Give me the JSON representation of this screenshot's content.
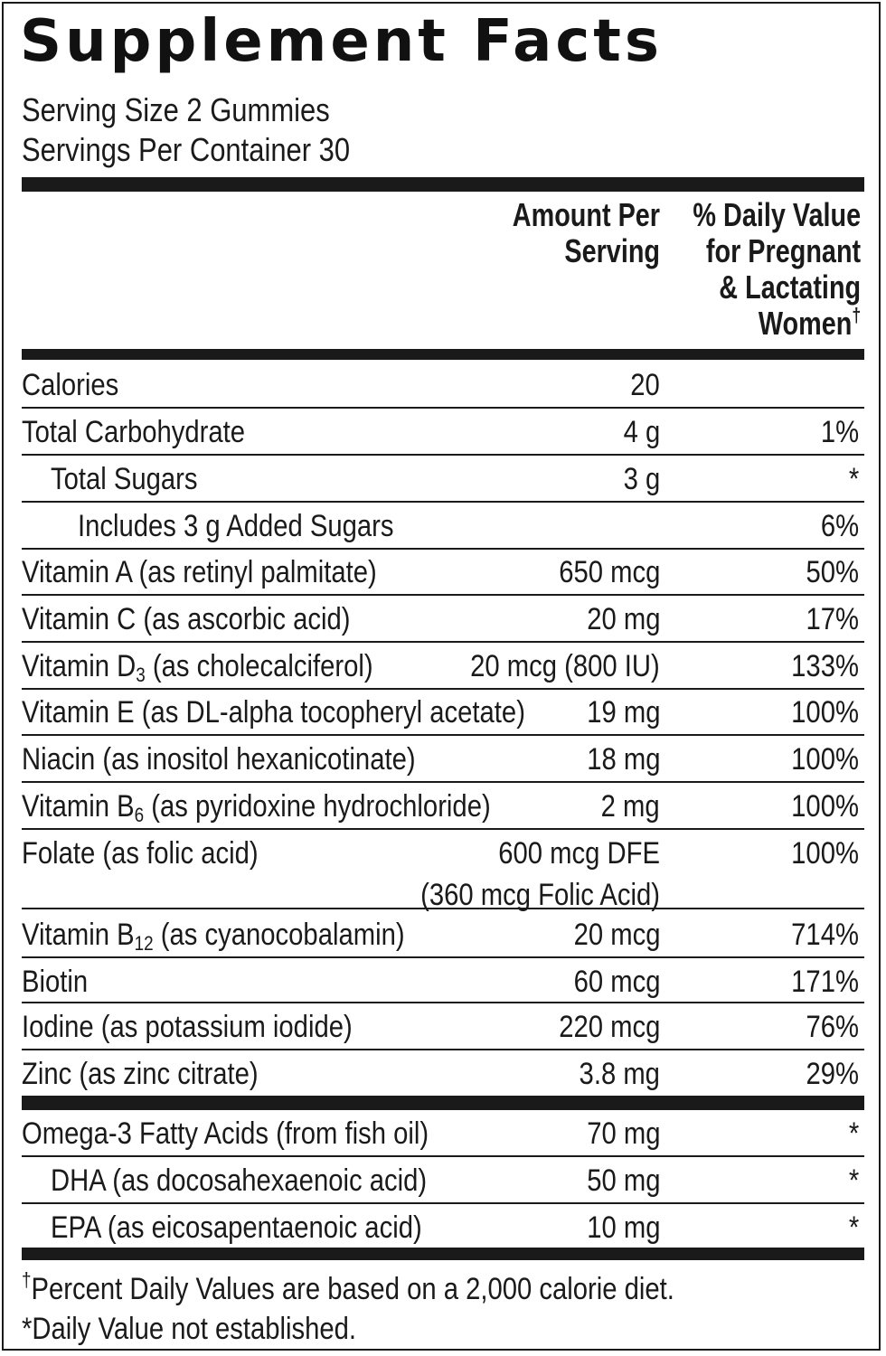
{
  "title": "Supplement Facts",
  "serving_size": "Serving Size 2 Gummies",
  "servings_per_container": "Servings Per Container 30",
  "header": {
    "amount_line1": "Amount Per",
    "amount_line2": "Serving",
    "dv_line1": "% Daily Value",
    "dv_line2": "for Pregnant",
    "dv_line3": "& Lactating",
    "dv_line4": "Women",
    "dv_mark": "†"
  },
  "rows": [
    {
      "name": "Calories",
      "sub": "",
      "rest": "",
      "amount": "20",
      "amount2": "",
      "dv": ""
    },
    {
      "name": "Total Carbohydrate",
      "sub": "",
      "rest": "",
      "amount": "4 g",
      "amount2": "",
      "dv": "1%"
    },
    {
      "name": "Total Sugars",
      "sub": "",
      "rest": "",
      "amount": "3 g",
      "amount2": "",
      "dv": "*"
    },
    {
      "name": "Includes 3 g Added Sugars",
      "sub": "",
      "rest": "",
      "amount": "",
      "amount2": "",
      "dv": "6%"
    },
    {
      "name": "Vitamin A (as retinyl palmitate)",
      "sub": "",
      "rest": "",
      "amount": "650 mcg",
      "amount2": "",
      "dv": "50%"
    },
    {
      "name": "Vitamin C (as ascorbic acid)",
      "sub": "",
      "rest": "",
      "amount": "20 mg",
      "amount2": "",
      "dv": "17%"
    },
    {
      "name": "Vitamin D",
      "sub": "3",
      "rest": " (as cholecalciferol)",
      "amount": "20 mcg (800 IU)",
      "amount2": "",
      "dv": "133%"
    },
    {
      "name": "Vitamin E (as DL-alpha tocopheryl acetate)",
      "sub": "",
      "rest": "",
      "amount": "19 mg",
      "amount2": "",
      "dv": "100%"
    },
    {
      "name": "Niacin (as inositol hexanicotinate)",
      "sub": "",
      "rest": "",
      "amount": "18 mg",
      "amount2": "",
      "dv": "100%"
    },
    {
      "name": "Vitamin B",
      "sub": "6",
      "rest": " (as pyridoxine hydrochloride)",
      "amount": "2 mg",
      "amount2": "",
      "dv": "100%"
    },
    {
      "name": "Folate (as folic acid)",
      "sub": "",
      "rest": "",
      "amount": "600 mcg DFE",
      "amount2": "(360 mcg Folic Acid)",
      "dv": "100%"
    },
    {
      "name": "Vitamin B",
      "sub": "12",
      "rest": " (as cyanocobalamin)",
      "amount": "20 mcg",
      "amount2": "",
      "dv": "714%"
    },
    {
      "name": "Biotin",
      "sub": "",
      "rest": "",
      "amount": "60 mcg",
      "amount2": "",
      "dv": "171%"
    },
    {
      "name": "Iodine (as potassium iodide)",
      "sub": "",
      "rest": "",
      "amount": "220 mcg",
      "amount2": "",
      "dv": "76%"
    },
    {
      "name": "Zinc (as zinc citrate)",
      "sub": "",
      "rest": "",
      "amount": "3.8 mg",
      "amount2": "",
      "dv": "29%"
    },
    {
      "name": "Omega-3 Fatty Acids (from fish oil)",
      "sub": "",
      "rest": "",
      "amount": "70 mg",
      "amount2": "",
      "dv": "*"
    },
    {
      "name": "DHA (as docosahexaenoic acid)",
      "sub": "",
      "rest": "",
      "amount": "50 mg",
      "amount2": "",
      "dv": "*"
    },
    {
      "name": "EPA (as eicosapentaenoic acid)",
      "sub": "",
      "rest": "",
      "amount": "10 mg",
      "amount2": "",
      "dv": "*"
    }
  ],
  "footnotes": {
    "dagger": "†",
    "percent_note": "Percent Daily Values are based on a 2,000 calorie diet.",
    "not_established": "*Daily Value not established."
  }
}
